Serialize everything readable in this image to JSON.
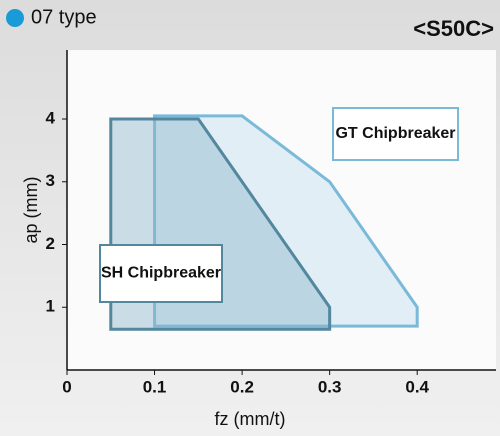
{
  "chart_data": {
    "type": "polygon",
    "header": "07 type",
    "title": "<S50C>",
    "x_label": "fz (mm/t)",
    "y_label": "ap (mm)",
    "xlim": [
      0,
      0.49
    ],
    "ylim": [
      0,
      5.1
    ],
    "xticks": [
      0,
      0.1,
      0.2,
      0.3,
      0.4
    ],
    "yticks": [
      1,
      2,
      3,
      4
    ],
    "series": [
      {
        "name": "GT Chipbreaker",
        "color": "#7bb9d9",
        "x": [
          0.1,
          0.1,
          0.2,
          0.3,
          0.4,
          0.4
        ],
        "values": [
          0.7,
          4.05,
          4.05,
          3.0,
          1.0,
          0.7
        ]
      },
      {
        "name": "SH Chipbreaker",
        "color": "#52879e",
        "x": [
          0.05,
          0.05,
          0.15,
          0.3,
          0.3
        ],
        "values": [
          0.65,
          4.0,
          4.0,
          1.0,
          0.65
        ]
      }
    ]
  }
}
